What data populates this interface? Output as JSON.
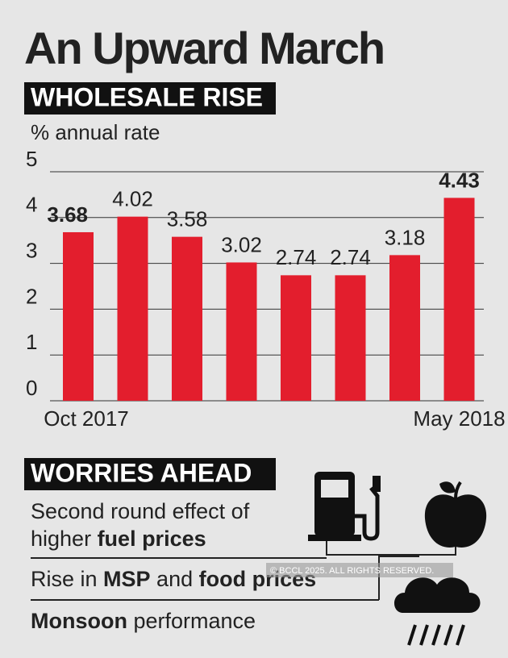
{
  "chart_data": {
    "type": "bar",
    "title": "An Upward March",
    "subtitle": "WHOLESALE RISE",
    "y_axis_label": "% annual rate",
    "categories": [
      "Oct 2017",
      null,
      null,
      null,
      null,
      null,
      null,
      "May 2018"
    ],
    "values": [
      3.68,
      4.02,
      3.58,
      3.02,
      2.74,
      2.74,
      3.18,
      4.43
    ],
    "color": "#e31e2d",
    "ylim": [
      0,
      5
    ],
    "yticks": [
      0,
      1,
      2,
      3,
      4,
      5
    ],
    "grid": true
  },
  "worries": {
    "title": "WORRIES AHEAD",
    "items": [
      [
        "Second round effect of",
        "higher ",
        "fuel prices"
      ],
      [
        "Rise in ",
        "MSP",
        " and ",
        "food prices"
      ],
      [
        "Monsoon",
        " performance"
      ]
    ]
  },
  "copyright": "© BCCL 2025. ALL RIGHTS RESERVED."
}
